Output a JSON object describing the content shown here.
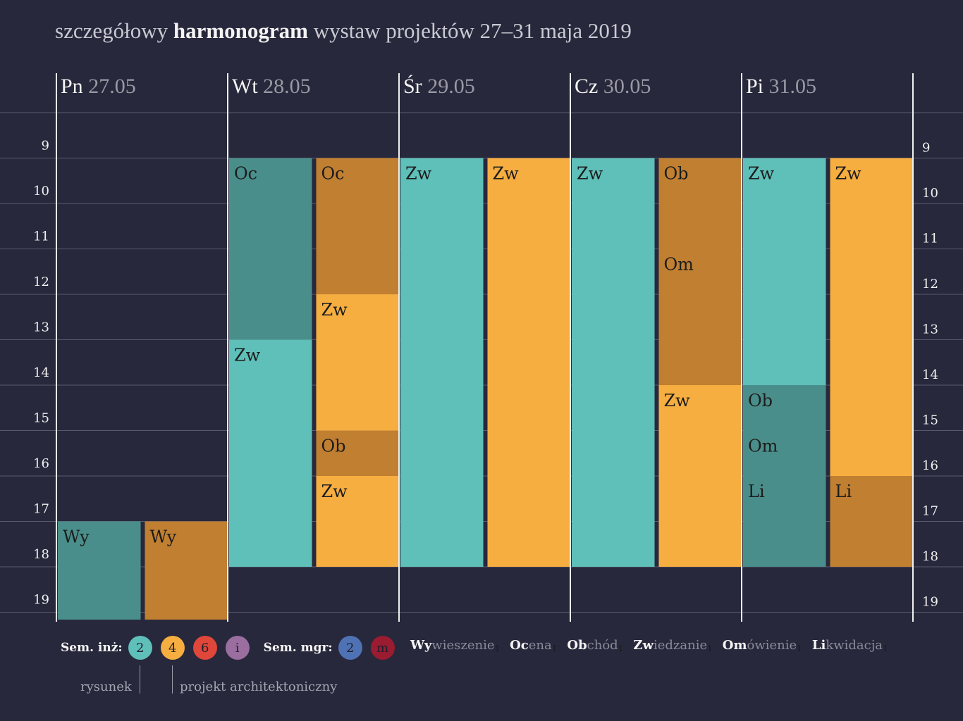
{
  "title": {
    "pre": "szczegółowy ",
    "bold": "harmonogram",
    "post": " wystaw projektów 27–31 maja 2019"
  },
  "colors": {
    "background": "#28283c",
    "teal_light": "#5fbfb9",
    "teal_dark": "#4a8e8b",
    "orange_light": "#f6ae41",
    "orange_dark": "#c07f31",
    "legend_2": "#5fbfb9",
    "legend_4": "#f6ae41",
    "legend_6": "#e0473b",
    "legend_i": "#9b6ea0",
    "legend_mgr2": "#4f72b5",
    "legend_m": "#9b1b30"
  },
  "chart_data": {
    "type": "timeline",
    "hours": [
      9,
      10,
      11,
      12,
      13,
      14,
      15,
      16,
      17,
      18,
      19
    ],
    "days": [
      {
        "abbr": "Pn",
        "date": "27.05"
      },
      {
        "abbr": "Wt",
        "date": "28.05"
      },
      {
        "abbr": "Śr",
        "date": "29.05"
      },
      {
        "abbr": "Cz",
        "date": "30.05"
      },
      {
        "abbr": "Pi",
        "date": "31.05"
      }
    ],
    "blocks": [
      {
        "day": 0,
        "col": 0,
        "start": 17.0,
        "end": 19.2,
        "label": "Wy",
        "color": "teal_dark"
      },
      {
        "day": 0,
        "col": 1,
        "start": 17.0,
        "end": 19.2,
        "label": "Wy",
        "color": "orange_dark"
      },
      {
        "day": 1,
        "col": 0,
        "start": 9.0,
        "end": 13.0,
        "label": "Oc",
        "color": "teal_dark"
      },
      {
        "day": 1,
        "col": 0,
        "start": 13.0,
        "end": 18.0,
        "label": "Zw",
        "color": "teal_light"
      },
      {
        "day": 1,
        "col": 1,
        "start": 9.0,
        "end": 12.0,
        "label": "Oc",
        "color": "orange_dark"
      },
      {
        "day": 1,
        "col": 1,
        "start": 12.0,
        "end": 15.0,
        "label": "Zw",
        "color": "orange_light"
      },
      {
        "day": 1,
        "col": 1,
        "start": 15.0,
        "end": 16.0,
        "label": "Ob",
        "color": "orange_dark"
      },
      {
        "day": 1,
        "col": 1,
        "start": 16.0,
        "end": 18.0,
        "label": "Zw",
        "color": "orange_light"
      },
      {
        "day": 2,
        "col": 0,
        "start": 9.0,
        "end": 18.0,
        "label": "Zw",
        "color": "teal_light"
      },
      {
        "day": 2,
        "col": 1,
        "start": 9.0,
        "end": 18.0,
        "label": "Zw",
        "color": "orange_light"
      },
      {
        "day": 3,
        "col": 0,
        "start": 9.0,
        "end": 18.0,
        "label": "Zw",
        "color": "teal_light"
      },
      {
        "day": 3,
        "col": 1,
        "start": 9.0,
        "end": 11.0,
        "label": "Ob",
        "color": "orange_dark"
      },
      {
        "day": 3,
        "col": 1,
        "start": 11.0,
        "end": 14.0,
        "label": "Om",
        "color": "orange_dark"
      },
      {
        "day": 3,
        "col": 1,
        "start": 14.0,
        "end": 18.0,
        "label": "Zw",
        "color": "orange_light"
      },
      {
        "day": 4,
        "col": 0,
        "start": 9.0,
        "end": 14.0,
        "label": "Zw",
        "color": "teal_light"
      },
      {
        "day": 4,
        "col": 0,
        "start": 14.0,
        "end": 15.0,
        "label": "Ob",
        "color": "teal_dark"
      },
      {
        "day": 4,
        "col": 0,
        "start": 15.0,
        "end": 16.0,
        "label": "Om",
        "color": "teal_dark"
      },
      {
        "day": 4,
        "col": 0,
        "start": 16.0,
        "end": 18.0,
        "label": "Li",
        "color": "teal_dark"
      },
      {
        "day": 4,
        "col": 1,
        "start": 9.0,
        "end": 16.0,
        "label": "Zw",
        "color": "orange_light"
      },
      {
        "day": 4,
        "col": 1,
        "start": 16.0,
        "end": 18.0,
        "label": "Li",
        "color": "orange_dark"
      }
    ]
  },
  "legend": {
    "inz_label": "Sem. inż:",
    "inz_items": [
      {
        "text": "2",
        "color": "legend_2"
      },
      {
        "text": "4",
        "color": "legend_4"
      },
      {
        "text": "6",
        "color": "legend_6"
      },
      {
        "text": "i",
        "color": "legend_i"
      }
    ],
    "mgr_label": "Sem. mgr:",
    "mgr_items": [
      {
        "text": "2",
        "color": "legend_mgr2"
      },
      {
        "text": "m",
        "color": "legend_m"
      }
    ],
    "abbreviations": [
      {
        "hl": "Wy",
        "rest": "wieszenie",
        "sup": "1"
      },
      {
        "hl": "Oc",
        "rest": "ena",
        "sup": "1"
      },
      {
        "hl": "Ob",
        "rest": "chód",
        "sup": "1"
      },
      {
        "hl": "Zw",
        "rest": "iedzanie",
        "sup": "1"
      },
      {
        "hl": "Om",
        "rest": "ówienie",
        "sup": "1"
      },
      {
        "hl": "Li",
        "rest": "kwidacja",
        "sup": "1"
      }
    ],
    "sub_rysunek": "rysunek",
    "sub_projekt": "projekt architektoniczny"
  }
}
